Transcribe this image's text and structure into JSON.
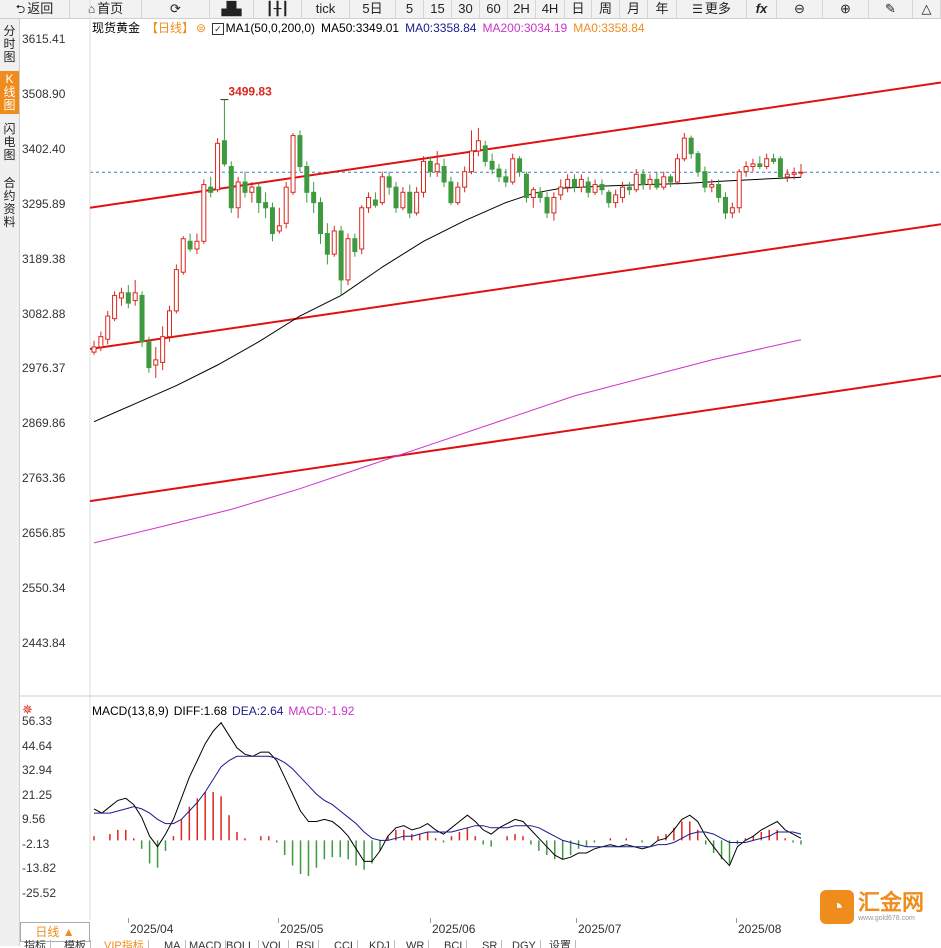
{
  "toolbar": {
    "back": "返回",
    "home": "首页",
    "tick": "tick",
    "periods": [
      "5日",
      "5",
      "15",
      "30",
      "60",
      "2H",
      "4H",
      "日",
      "周",
      "月",
      "年"
    ],
    "more": "更多",
    "fx": "fx"
  },
  "sidebar": {
    "tabs": [
      "分时图",
      "K线图",
      "闪电图",
      "合约资料"
    ],
    "active": "K线图"
  },
  "legend": {
    "name": "现货黄金",
    "period": "【日线】",
    "ma1": "MA1(50,0,200,0)",
    "ma50": "MA50:3349.01",
    "ma0a": "MA0:3358.84",
    "ma200": "MA200:3034.19",
    "ma0b": "MA0:3358.84"
  },
  "colors": {
    "up": "#d9281e",
    "down": "#3f9a3f",
    "ma50": "#000000",
    "ma200": "#cc33cc",
    "channel": "#e01010",
    "accent": "#f08c1e",
    "ma0a": "#1a1a8c",
    "ma0b": "#f08c1e"
  },
  "price_axis": [
    "3615.41",
    "3508.90",
    "3402.40",
    "3295.89",
    "3189.38",
    "3082.88",
    "2976.37",
    "2869.86",
    "2763.36",
    "2656.85",
    "2550.34",
    "2443.84"
  ],
  "high_marker": "3499.83",
  "macd_legend": {
    "name": "MACD(13,8,9)",
    "diff": "DIFF:1.68",
    "dea": "DEA:2.64",
    "macd": "MACD:-1.92"
  },
  "macd_axis": [
    "56.33",
    "44.64",
    "32.94",
    "21.25",
    "9.56",
    "-2.13",
    "-13.82",
    "-25.52"
  ],
  "x_axis": [
    "2025/04",
    "2025/05",
    "2025/06",
    "2025/07",
    "2025/08"
  ],
  "period_button": "日线 ▲",
  "indicator_tabs": [
    "指标",
    "模板",
    "VIP指标",
    "MA",
    "MACD",
    "BOLL",
    "VOL",
    "RSI",
    "CCI",
    "KDJ",
    "WR",
    "BCI",
    "SR",
    "DGY",
    "设置"
  ],
  "logo": {
    "text": "汇金网",
    "url": "www.gold678.com"
  },
  "chart_data": {
    "type": "candlestick",
    "title": "现货黄金 日线",
    "ylim": [
      2443.84,
      3615.41
    ],
    "current_price": 3358.84,
    "high_label": 3499.83,
    "candles": [
      {
        "o": 3010,
        "c": 3020,
        "h": 3032,
        "l": 3005
      },
      {
        "o": 3020,
        "c": 3040,
        "h": 3050,
        "l": 3012
      },
      {
        "o": 3035,
        "c": 3080,
        "h": 3090,
        "l": 3025
      },
      {
        "o": 3075,
        "c": 3120,
        "h": 3128,
        "l": 3070
      },
      {
        "o": 3115,
        "c": 3125,
        "h": 3135,
        "l": 3100
      },
      {
        "o": 3125,
        "c": 3105,
        "h": 3140,
        "l": 3095
      },
      {
        "o": 3110,
        "c": 3125,
        "h": 3150,
        "l": 3100
      },
      {
        "o": 3120,
        "c": 3030,
        "h": 3128,
        "l": 3020
      },
      {
        "o": 3030,
        "c": 2980,
        "h": 3040,
        "l": 2970
      },
      {
        "o": 2985,
        "c": 2995,
        "h": 3020,
        "l": 2960
      },
      {
        "o": 2990,
        "c": 3040,
        "h": 3060,
        "l": 2975
      },
      {
        "o": 3040,
        "c": 3090,
        "h": 3100,
        "l": 3030
      },
      {
        "o": 3090,
        "c": 3170,
        "h": 3180,
        "l": 3085
      },
      {
        "o": 3165,
        "c": 3230,
        "h": 3235,
        "l": 3160
      },
      {
        "o": 3225,
        "c": 3210,
        "h": 3240,
        "l": 3205
      },
      {
        "o": 3210,
        "c": 3225,
        "h": 3240,
        "l": 3200
      },
      {
        "o": 3225,
        "c": 3335,
        "h": 3345,
        "l": 3220
      },
      {
        "o": 3330,
        "c": 3320,
        "h": 3350,
        "l": 3310
      },
      {
        "o": 3325,
        "c": 3415,
        "h": 3425,
        "l": 3320
      },
      {
        "o": 3420,
        "c": 3375,
        "h": 3499.83,
        "l": 3370
      },
      {
        "o": 3370,
        "c": 3290,
        "h": 3380,
        "l": 3280
      },
      {
        "o": 3290,
        "c": 3340,
        "h": 3350,
        "l": 3270
      },
      {
        "o": 3340,
        "c": 3320,
        "h": 3360,
        "l": 3310
      },
      {
        "o": 3320,
        "c": 3330,
        "h": 3340,
        "l": 3300
      },
      {
        "o": 3330,
        "c": 3300,
        "h": 3340,
        "l": 3280
      },
      {
        "o": 3300,
        "c": 3290,
        "h": 3320,
        "l": 3270
      },
      {
        "o": 3290,
        "c": 3240,
        "h": 3300,
        "l": 3225
      },
      {
        "o": 3245,
        "c": 3255,
        "h": 3290,
        "l": 3240
      },
      {
        "o": 3260,
        "c": 3330,
        "h": 3340,
        "l": 3250
      },
      {
        "o": 3320,
        "c": 3430,
        "h": 3435,
        "l": 3315
      },
      {
        "o": 3430,
        "c": 3370,
        "h": 3440,
        "l": 3360
      },
      {
        "o": 3370,
        "c": 3320,
        "h": 3380,
        "l": 3300
      },
      {
        "o": 3320,
        "c": 3300,
        "h": 3340,
        "l": 3280
      },
      {
        "o": 3300,
        "c": 3240,
        "h": 3310,
        "l": 3220
      },
      {
        "o": 3240,
        "c": 3200,
        "h": 3260,
        "l": 3180
      },
      {
        "o": 3200,
        "c": 3245,
        "h": 3255,
        "l": 3195
      },
      {
        "o": 3245,
        "c": 3150,
        "h": 3255,
        "l": 3120
      },
      {
        "o": 3150,
        "c": 3230,
        "h": 3240,
        "l": 3140
      },
      {
        "o": 3230,
        "c": 3205,
        "h": 3240,
        "l": 3195
      },
      {
        "o": 3210,
        "c": 3290,
        "h": 3295,
        "l": 3200
      },
      {
        "o": 3290,
        "c": 3310,
        "h": 3320,
        "l": 3280
      },
      {
        "o": 3305,
        "c": 3295,
        "h": 3320,
        "l": 3290
      },
      {
        "o": 3300,
        "c": 3350,
        "h": 3360,
        "l": 3295
      },
      {
        "o": 3350,
        "c": 3330,
        "h": 3360,
        "l": 3315
      },
      {
        "o": 3330,
        "c": 3290,
        "h": 3340,
        "l": 3280
      },
      {
        "o": 3290,
        "c": 3320,
        "h": 3330,
        "l": 3285
      },
      {
        "o": 3320,
        "c": 3280,
        "h": 3335,
        "l": 3270
      },
      {
        "o": 3280,
        "c": 3320,
        "h": 3330,
        "l": 3275
      },
      {
        "o": 3320,
        "c": 3380,
        "h": 3390,
        "l": 3310
      },
      {
        "o": 3380,
        "c": 3360,
        "h": 3390,
        "l": 3350
      },
      {
        "o": 3360,
        "c": 3375,
        "h": 3400,
        "l": 3350
      },
      {
        "o": 3370,
        "c": 3340,
        "h": 3385,
        "l": 3330
      },
      {
        "o": 3340,
        "c": 3300,
        "h": 3350,
        "l": 3295
      },
      {
        "o": 3300,
        "c": 3330,
        "h": 3340,
        "l": 3295
      },
      {
        "o": 3330,
        "c": 3360,
        "h": 3370,
        "l": 3320
      },
      {
        "o": 3360,
        "c": 3400,
        "h": 3440,
        "l": 3355
      },
      {
        "o": 3400,
        "c": 3420,
        "h": 3445,
        "l": 3390
      },
      {
        "o": 3410,
        "c": 3380,
        "h": 3420,
        "l": 3370
      },
      {
        "o": 3380,
        "c": 3365,
        "h": 3395,
        "l": 3355
      },
      {
        "o": 3365,
        "c": 3350,
        "h": 3375,
        "l": 3340
      },
      {
        "o": 3350,
        "c": 3340,
        "h": 3365,
        "l": 3330
      },
      {
        "o": 3340,
        "c": 3385,
        "h": 3395,
        "l": 3335
      },
      {
        "o": 3385,
        "c": 3360,
        "h": 3390,
        "l": 3350
      },
      {
        "o": 3355,
        "c": 3310,
        "h": 3360,
        "l": 3300
      },
      {
        "o": 3310,
        "c": 3325,
        "h": 3330,
        "l": 3290
      },
      {
        "o": 3320,
        "c": 3310,
        "h": 3330,
        "l": 3300
      },
      {
        "o": 3310,
        "c": 3280,
        "h": 3320,
        "l": 3270
      },
      {
        "o": 3280,
        "c": 3310,
        "h": 3320,
        "l": 3265
      },
      {
        "o": 3315,
        "c": 3330,
        "h": 3345,
        "l": 3305
      },
      {
        "o": 3330,
        "c": 3345,
        "h": 3355,
        "l": 3320
      },
      {
        "o": 3345,
        "c": 3330,
        "h": 3355,
        "l": 3320
      },
      {
        "o": 3330,
        "c": 3345,
        "h": 3355,
        "l": 3320
      },
      {
        "o": 3340,
        "c": 3320,
        "h": 3350,
        "l": 3310
      },
      {
        "o": 3320,
        "c": 3335,
        "h": 3345,
        "l": 3315
      },
      {
        "o": 3335,
        "c": 3325,
        "h": 3345,
        "l": 3315
      },
      {
        "o": 3320,
        "c": 3300,
        "h": 3325,
        "l": 3290
      },
      {
        "o": 3300,
        "c": 3315,
        "h": 3325,
        "l": 3290
      },
      {
        "o": 3310,
        "c": 3330,
        "h": 3340,
        "l": 3300
      },
      {
        "o": 3330,
        "c": 3325,
        "h": 3340,
        "l": 3315
      },
      {
        "o": 3325,
        "c": 3355,
        "h": 3365,
        "l": 3320
      },
      {
        "o": 3355,
        "c": 3335,
        "h": 3365,
        "l": 3325
      },
      {
        "o": 3335,
        "c": 3345,
        "h": 3355,
        "l": 3325
      },
      {
        "o": 3345,
        "c": 3330,
        "h": 3360,
        "l": 3325
      },
      {
        "o": 3330,
        "c": 3350,
        "h": 3360,
        "l": 3325
      },
      {
        "o": 3350,
        "c": 3340,
        "h": 3355,
        "l": 3330
      },
      {
        "o": 3340,
        "c": 3385,
        "h": 3395,
        "l": 3335
      },
      {
        "o": 3385,
        "c": 3425,
        "h": 3435,
        "l": 3380
      },
      {
        "o": 3425,
        "c": 3395,
        "h": 3430,
        "l": 3385
      },
      {
        "o": 3395,
        "c": 3360,
        "h": 3400,
        "l": 3350
      },
      {
        "o": 3360,
        "c": 3330,
        "h": 3370,
        "l": 3320
      },
      {
        "o": 3330,
        "c": 3335,
        "h": 3345,
        "l": 3320
      },
      {
        "o": 3335,
        "c": 3310,
        "h": 3345,
        "l": 3300
      },
      {
        "o": 3310,
        "c": 3280,
        "h": 3320,
        "l": 3268
      },
      {
        "o": 3280,
        "c": 3290,
        "h": 3300,
        "l": 3270
      },
      {
        "o": 3290,
        "c": 3360,
        "h": 3365,
        "l": 3280
      },
      {
        "o": 3360,
        "c": 3370,
        "h": 3380,
        "l": 3350
      },
      {
        "o": 3370,
        "c": 3375,
        "h": 3385,
        "l": 3360
      },
      {
        "o": 3375,
        "c": 3370,
        "h": 3390,
        "l": 3365
      },
      {
        "o": 3370,
        "c": 3385,
        "h": 3395,
        "l": 3365
      },
      {
        "o": 3385,
        "c": 3380,
        "h": 3395,
        "l": 3375
      },
      {
        "o": 3385,
        "c": 3350,
        "h": 3390,
        "l": 3345
      },
      {
        "o": 3350,
        "c": 3355,
        "h": 3365,
        "l": 3340
      },
      {
        "o": 3355,
        "c": 3358,
        "h": 3368,
        "l": 3345
      },
      {
        "o": 3358,
        "c": 3359,
        "h": 3375,
        "l": 3350
      }
    ],
    "ma50": [
      [
        0,
        2875
      ],
      [
        6,
        2910
      ],
      [
        12,
        2945
      ],
      [
        18,
        2985
      ],
      [
        24,
        3030
      ],
      [
        30,
        3080
      ],
      [
        36,
        3120
      ],
      [
        42,
        3175
      ],
      [
        48,
        3225
      ],
      [
        54,
        3265
      ],
      [
        60,
        3300
      ],
      [
        64,
        3318
      ],
      [
        68,
        3328
      ],
      [
        74,
        3332
      ],
      [
        80,
        3335
      ],
      [
        86,
        3337
      ],
      [
        92,
        3342
      ],
      [
        98,
        3346
      ],
      [
        103,
        3349
      ]
    ],
    "ma200": [
      [
        0,
        2640
      ],
      [
        10,
        2672
      ],
      [
        20,
        2705
      ],
      [
        30,
        2745
      ],
      [
        40,
        2790
      ],
      [
        50,
        2835
      ],
      [
        60,
        2880
      ],
      [
        70,
        2925
      ],
      [
        80,
        2960
      ],
      [
        90,
        2995
      ],
      [
        103,
        3034
      ]
    ],
    "channel_lines": [
      {
        "name": "upper",
        "from": 3290,
        "to": 3533
      },
      {
        "name": "middle",
        "from": 3016,
        "to": 3258
      },
      {
        "name": "lower",
        "from": 2721,
        "to": 2964
      }
    ],
    "macd": {
      "ylim": [
        -31.4,
        62.2
      ],
      "diff": [
        15,
        13,
        16,
        19,
        20,
        17,
        11,
        2,
        -3,
        3,
        10,
        20,
        30,
        38,
        46,
        52,
        56,
        50,
        44,
        41,
        40,
        42,
        42,
        38,
        30,
        22,
        14,
        9,
        9,
        10,
        9,
        6,
        2,
        -4,
        -10,
        -10,
        -5,
        2,
        6,
        7,
        5,
        6,
        8,
        5,
        3,
        6,
        9,
        12,
        9,
        5,
        3,
        6,
        8,
        10,
        9,
        5,
        1,
        -3,
        -7,
        -9,
        -8,
        -6,
        -6,
        -4,
        -3,
        -2,
        -3,
        -2,
        -3,
        -4,
        -3,
        0,
        1,
        5,
        10,
        12,
        9,
        2,
        -3,
        -8,
        -12,
        -3,
        0,
        2,
        5,
        7,
        9,
        5,
        3,
        1
      ],
      "dea": [
        13,
        13,
        13,
        14,
        15,
        16,
        15,
        13,
        10,
        8,
        8,
        10,
        14,
        18,
        23,
        29,
        35,
        38,
        40,
        40,
        40,
        40,
        40,
        39,
        37,
        34,
        30,
        26,
        22,
        19,
        17,
        14,
        11,
        8,
        4,
        1,
        0,
        0,
        1,
        2,
        2,
        3,
        4,
        4,
        4,
        4,
        5,
        6,
        7,
        7,
        6,
        6,
        6,
        7,
        7,
        7,
        6,
        4,
        2,
        0,
        -1,
        -2,
        -3,
        -3,
        -3,
        -3,
        -3,
        -3,
        -3,
        -3,
        -3,
        -2,
        -2,
        -1,
        1,
        3,
        4,
        4,
        3,
        1,
        -1,
        -1,
        -1,
        0,
        1,
        2,
        4,
        4,
        4,
        3
      ],
      "hist": [
        2,
        0,
        3,
        5,
        5,
        1,
        -4,
        -11,
        -13,
        -5,
        2,
        10,
        16,
        20,
        23,
        23,
        21,
        12,
        4,
        1,
        0,
        2,
        2,
        -1,
        -7,
        -12,
        -16,
        -17,
        -13,
        -9,
        -8,
        -8,
        -9,
        -12,
        -14,
        -11,
        -5,
        2,
        5,
        5,
        3,
        3,
        4,
        1,
        -1,
        2,
        4,
        6,
        2,
        -2,
        -3,
        0,
        2,
        3,
        2,
        -2,
        -5,
        -7,
        -9,
        -9,
        -7,
        -4,
        -3,
        -1,
        0,
        1,
        0,
        1,
        0,
        -1,
        0,
        2,
        3,
        6,
        9,
        9,
        5,
        -2,
        -6,
        -9,
        -11,
        -2,
        1,
        2,
        4,
        5,
        5,
        1,
        -1,
        -2
      ]
    }
  }
}
